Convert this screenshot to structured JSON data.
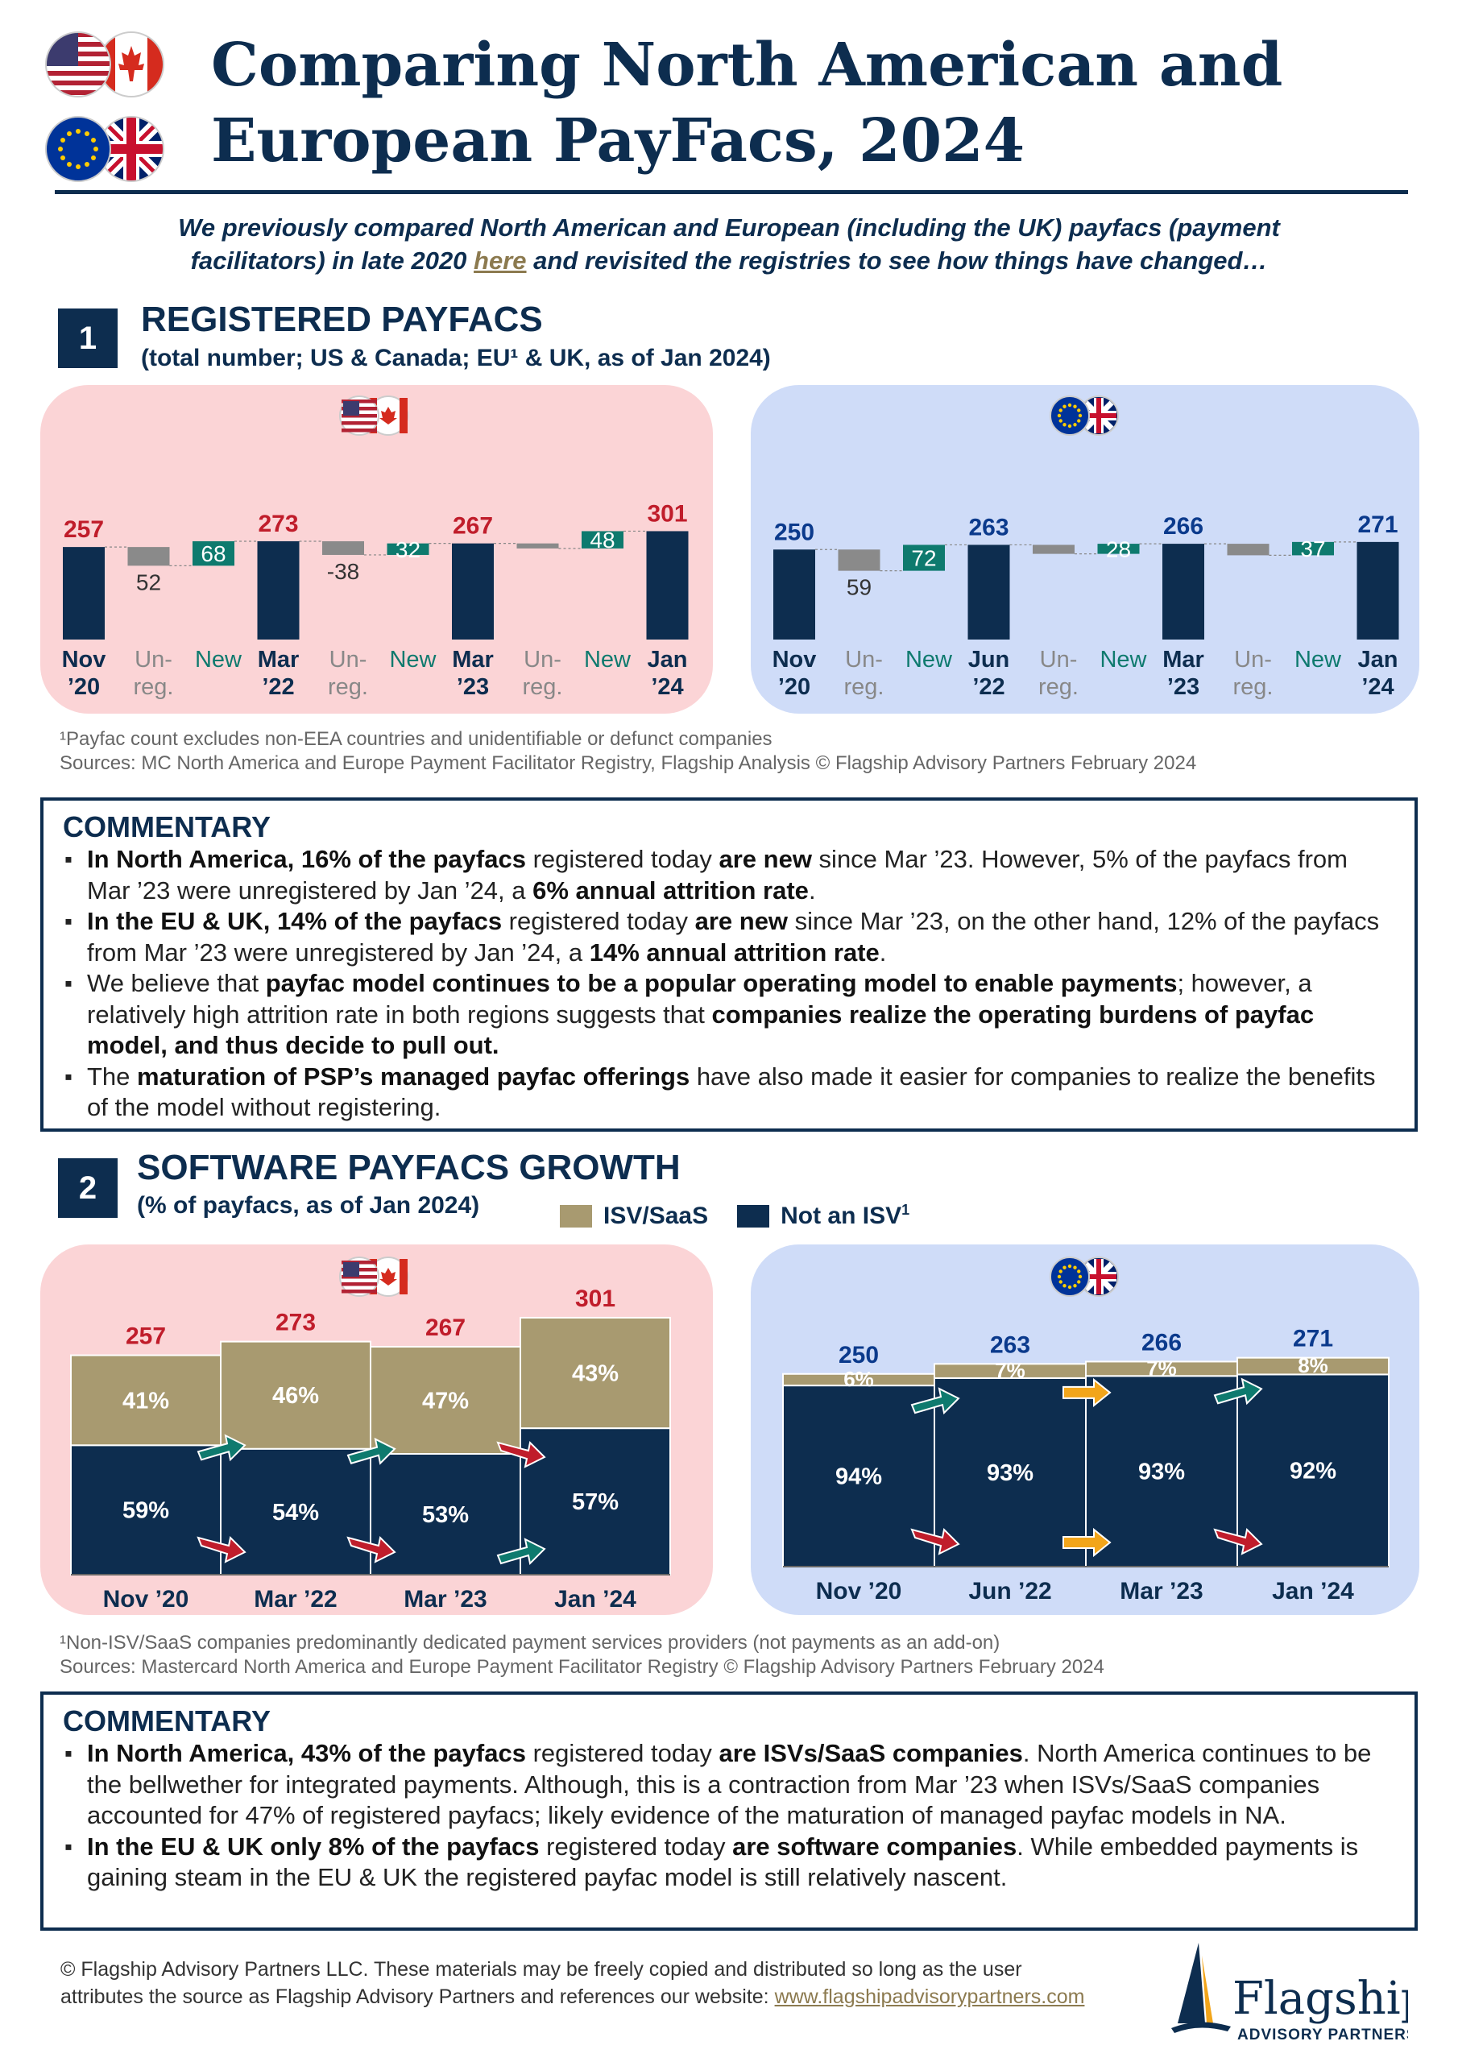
{
  "header": {
    "title_line1": "Comparing North American and",
    "title_line2": "European PayFacs, 2024",
    "subtitle_line1": "We previously compared North American and European (including the UK) payfacs (payment",
    "subtitle_line2a": "facilitators) in late 2020 ",
    "subtitle_link": "here",
    "subtitle_line2b": " and revisited the registries to see how things have changed…",
    "flags": [
      "us-flag-icon",
      "canada-flag-icon",
      "eu-flag-icon",
      "uk-flag-icon"
    ]
  },
  "section1": {
    "number": "1",
    "title": "REGISTERED PAYFACS",
    "subtitle": "(total number; US & Canada; EU¹ & UK, as of Jan 2024)",
    "footnote": "¹Payfac count excludes non-EEA countries and unidentifiable or defunct companies",
    "sources": "Sources: MC North America and Europe Payment Facilitator Registry, Flagship Analysis © Flagship Advisory Partners February 2024"
  },
  "commentary1": {
    "title": "COMMENTARY",
    "items": [
      [
        [
          "b",
          "In North America, 16% of the payfacs"
        ],
        [
          "t",
          " registered today "
        ],
        [
          "b",
          "are new"
        ],
        [
          "t",
          " since Mar ’23. However, 5% of the payfacs from Mar ’23 were unregistered by Jan ’24, a "
        ],
        [
          "b",
          "6% annual attrition rate"
        ],
        [
          "t",
          "."
        ]
      ],
      [
        [
          "b",
          "In the EU & UK, 14% of the payfacs"
        ],
        [
          "t",
          " registered today "
        ],
        [
          "b",
          "are new"
        ],
        [
          "t",
          " since Mar ’23, on the other hand, 12% of the payfacs from Mar ’23 were unregistered by Jan ’24, a "
        ],
        [
          "b",
          "14% annual attrition rate"
        ],
        [
          "t",
          "."
        ]
      ],
      [
        [
          "t",
          "We believe that "
        ],
        [
          "b",
          "payfac model continues to be a popular operating model to enable payments"
        ],
        [
          "t",
          "; however, a relatively high attrition rate in both regions suggests that "
        ],
        [
          "b",
          "companies realize the operating burdens of payfac model, and thus decide to pull out."
        ]
      ],
      [
        [
          "t",
          "The "
        ],
        [
          "b",
          "maturation of PSP’s managed payfac offerings"
        ],
        [
          "t",
          " have also made it easier for companies to realize the benefits of the model without registering."
        ]
      ]
    ]
  },
  "section2": {
    "number": "2",
    "title": "SOFTWARE PAYFACS GROWTH",
    "subtitle": "(% of payfacs, as of Jan 2024)",
    "legend": [
      {
        "label": "ISV/SaaS",
        "color": "#a89a70"
      },
      {
        "label": "Not an ISV",
        "sup": "1",
        "color": "#0d2d4f"
      }
    ],
    "footnote": "¹Non-ISV/SaaS companies predominantly dedicated payment services providers (not payments as an add-on)",
    "sources": "Sources: Mastercard North America and Europe Payment Facilitator Registry © Flagship Advisory Partners February 2024"
  },
  "commentary2": {
    "title": "COMMENTARY",
    "items": [
      [
        [
          "b",
          "In North America, 43% of the payfacs"
        ],
        [
          "t",
          " registered today "
        ],
        [
          "b",
          "are ISVs/SaaS companies"
        ],
        [
          "t",
          ". North America continues to be the bellwether for integrated payments. Although, this is a contraction from Mar ’23 when ISVs/SaaS companies accounted for 47% of registered payfacs; likely evidence of the maturation of managed payfac models in NA."
        ]
      ],
      [
        [
          "b",
          "In the EU & UK only 8% of the payfacs"
        ],
        [
          "t",
          " registered today "
        ],
        [
          "b",
          "are software companies"
        ],
        [
          "t",
          ". While embedded payments is gaining steam in the EU & UK the registered payfac model is still relatively nascent."
        ]
      ]
    ]
  },
  "footer": {
    "line1": "© Flagship Advisory Partners LLC. These materials may be freely copied and distributed so long as the user",
    "line2": "attributes the source as Flagship Advisory Partners and references our website: ",
    "link": "www.flagshipadvisorypartners.com",
    "logo_name": "Flagship",
    "logo_sub": "ADVISORY PARTNERS"
  },
  "colors": {
    "navy": "#0d2d4f",
    "teal": "#0e7a6e",
    "grey": "#8a8a8a",
    "red": "#c01d2b",
    "gold": "#a89a70",
    "amber": "#f2a51a",
    "pink_panel": "#fbd4d6",
    "blue_panel": "#cfdcf8"
  },
  "chart_data": [
    {
      "type": "bar",
      "subtype": "waterfall",
      "region": "US & Canada",
      "categories": [
        [
          "Nov",
          "’20"
        ],
        [
          "Un-",
          "reg."
        ],
        [
          "New",
          ""
        ],
        [
          "Mar",
          "’22"
        ],
        [
          "Un-",
          "reg."
        ],
        [
          "New",
          ""
        ],
        [
          "Mar",
          "’23"
        ],
        [
          "Un-",
          "reg."
        ],
        [
          "New",
          ""
        ],
        [
          "Jan",
          "’24"
        ]
      ],
      "totals": [
        257,
        273,
        267,
        301
      ],
      "steps": [
        {
          "unreg": 52,
          "new": 68,
          "unreg_label": "52"
        },
        {
          "unreg": 38,
          "new": 32,
          "unreg_label": "-38"
        },
        {
          "unreg": 14,
          "new": 48,
          "unreg_label": ""
        }
      ],
      "ylim": [
        0,
        320
      ]
    },
    {
      "type": "bar",
      "subtype": "waterfall",
      "region": "EU & UK",
      "categories": [
        [
          "Nov",
          "’20"
        ],
        [
          "Un-",
          "reg."
        ],
        [
          "New",
          ""
        ],
        [
          "Jun",
          "’22"
        ],
        [
          "Un-",
          "reg."
        ],
        [
          "New",
          ""
        ],
        [
          "Mar",
          "’23"
        ],
        [
          "Un-",
          "reg."
        ],
        [
          "New",
          ""
        ],
        [
          "Jan",
          "’24"
        ]
      ],
      "totals": [
        250,
        263,
        266,
        271
      ],
      "steps": [
        {
          "unreg": 59,
          "new": 72,
          "unreg_label": "59"
        },
        {
          "unreg": 25,
          "new": 28,
          "unreg_label": ""
        },
        {
          "unreg": 32,
          "new": 37,
          "unreg_label": ""
        }
      ],
      "ylim": [
        0,
        320
      ]
    },
    {
      "type": "bar",
      "subtype": "stacked-100-width-scaled",
      "region": "US & Canada",
      "categories": [
        "Nov ’20",
        "Mar ’22",
        "Mar ’23",
        "Jan ’24"
      ],
      "totals": [
        257,
        273,
        267,
        301
      ],
      "series": [
        {
          "name": "Not an ISV",
          "values": [
            59,
            54,
            53,
            57
          ]
        },
        {
          "name": "ISV/SaaS",
          "values": [
            41,
            46,
            47,
            43
          ]
        }
      ],
      "arrows_isv": [
        "up",
        "up",
        "down"
      ],
      "arrows_non_isv": [
        "down",
        "down",
        "up"
      ],
      "ylim": [
        0,
        320
      ]
    },
    {
      "type": "bar",
      "subtype": "stacked-100-width-scaled",
      "region": "EU & UK",
      "categories": [
        "Nov ’20",
        "Jun ’22",
        "Mar ’23",
        "Jan ’24"
      ],
      "totals": [
        250,
        263,
        266,
        271
      ],
      "series": [
        {
          "name": "Not an ISV",
          "values": [
            94,
            93,
            93,
            92
          ]
        },
        {
          "name": "ISV/SaaS",
          "values": [
            6,
            7,
            7,
            8
          ]
        }
      ],
      "arrows_isv": [
        "up",
        "flat",
        "up"
      ],
      "arrows_non_isv": [
        "down",
        "flat",
        "down"
      ],
      "ylim": [
        0,
        300
      ]
    }
  ]
}
